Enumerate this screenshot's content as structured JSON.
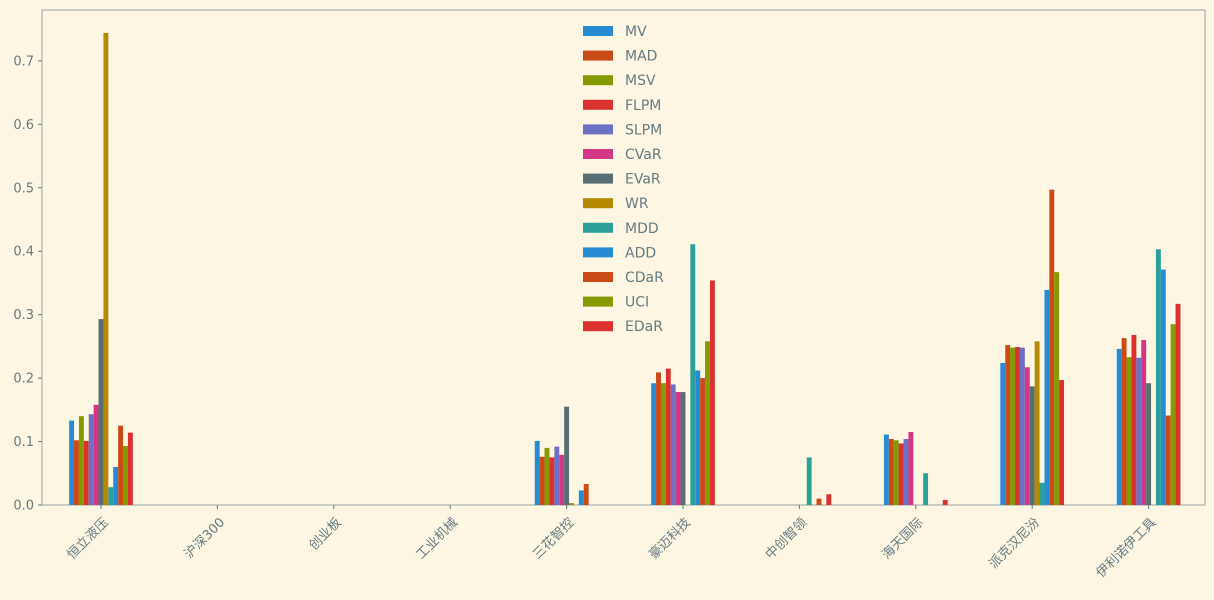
{
  "chart_data": {
    "type": "bar",
    "categories": [
      "恒立液压",
      "沪深300",
      "创业板",
      "工业机械",
      "三花智控",
      "豪迈科技",
      "中创智领",
      "海天国际",
      "派克汉尼汾",
      "伊利诺伊工具"
    ],
    "series": [
      {
        "name": "MV",
        "color": "#268bd2",
        "values": [
          0.133,
          0,
          0,
          0,
          0.101,
          0.192,
          0,
          0.111,
          0.224,
          0.246
        ]
      },
      {
        "name": "MAD",
        "color": "#cb4b16",
        "values": [
          0.102,
          0,
          0,
          0,
          0.076,
          0.209,
          0,
          0.104,
          0.252,
          0.263
        ]
      },
      {
        "name": "MSV",
        "color": "#859900",
        "values": [
          0.14,
          0,
          0,
          0,
          0.09,
          0.192,
          0,
          0.102,
          0.248,
          0.233
        ]
      },
      {
        "name": "FLPM",
        "color": "#dc322f",
        "values": [
          0.101,
          0,
          0,
          0,
          0.075,
          0.215,
          0,
          0.097,
          0.249,
          0.268
        ]
      },
      {
        "name": "SLPM",
        "color": "#6c71c4",
        "values": [
          0.143,
          0,
          0,
          0,
          0.092,
          0.19,
          0,
          0.104,
          0.248,
          0.232
        ]
      },
      {
        "name": "CVaR",
        "color": "#d33682",
        "values": [
          0.158,
          0,
          0,
          0,
          0.079,
          0.178,
          0,
          0.115,
          0.217,
          0.26
        ]
      },
      {
        "name": "EVaR",
        "color": "#586e75",
        "values": [
          0.293,
          0,
          0,
          0,
          0.155,
          0.178,
          0,
          0,
          0.187,
          0.192
        ]
      },
      {
        "name": "WR",
        "color": "#b58900",
        "values": [
          0.744,
          0,
          0,
          0,
          0.003,
          0,
          0,
          0,
          0.258,
          0
        ]
      },
      {
        "name": "MDD",
        "color": "#2aa198",
        "values": [
          0.028,
          0,
          0,
          0,
          0,
          0.411,
          0.075,
          0.05,
          0.035,
          0.403
        ]
      },
      {
        "name": "ADD",
        "color": "#268bd2",
        "values": [
          0.06,
          0,
          0,
          0,
          0.023,
          0.212,
          0,
          0,
          0.339,
          0.371
        ]
      },
      {
        "name": "CDaR",
        "color": "#cb4b16",
        "values": [
          0.125,
          0,
          0,
          0,
          0.033,
          0.2,
          0.01,
          0,
          0.497,
          0.141
        ]
      },
      {
        "name": "UCI",
        "color": "#859900",
        "values": [
          0.093,
          0,
          0,
          0,
          0,
          0.258,
          0,
          0,
          0.367,
          0.285
        ]
      },
      {
        "name": "EDaR",
        "color": "#dc322f",
        "values": [
          0.114,
          0,
          0,
          0,
          0,
          0.354,
          0.017,
          0.008,
          0.197,
          0.317
        ]
      }
    ],
    "yticks": [
      0.0,
      0.1,
      0.2,
      0.3,
      0.4,
      0.5,
      0.6,
      0.7
    ],
    "ylim": [
      0,
      0.78
    ],
    "legend_position": "top-center",
    "grid": false,
    "title": "",
    "xlabel": "",
    "ylabel": ""
  }
}
